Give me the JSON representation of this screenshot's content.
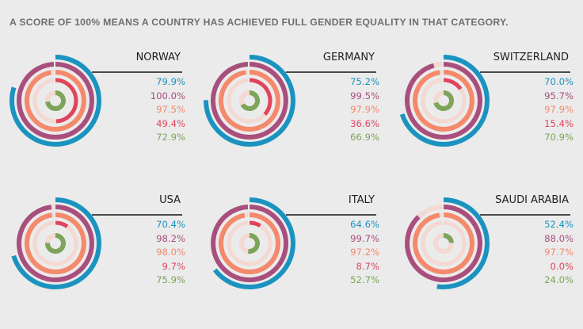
{
  "headline": "A SCORE OF 100% MEANS A COUNTRY HAS ACHIEVED FULL GENDER EQUALITY IN THAT CATEGORY.",
  "colors": {
    "ring_colors": [
      "#1b93c0",
      "#a84f7e",
      "#f4896c",
      "#e0445c",
      "#7da45a"
    ],
    "track_color": "#f4d8d2",
    "background": "#ebebeb"
  },
  "chart_data": {
    "type": "radial_bar",
    "series_count": 5,
    "panels": [
      {
        "country": "NORWAY",
        "values": [
          79.9,
          100.0,
          97.5,
          49.4,
          72.9
        ],
        "labels": [
          "79.9%",
          "100.0%",
          "97.5%",
          "49.4%",
          "72.9%"
        ]
      },
      {
        "country": "GERMANY",
        "values": [
          75.2,
          99.5,
          97.9,
          36.6,
          66.9
        ],
        "labels": [
          "75.2%",
          "99.5%",
          "97.9%",
          "36.6%",
          "66.9%"
        ]
      },
      {
        "country": "SWITZERLAND",
        "values": [
          70.0,
          95.7,
          97.9,
          15.4,
          70.9
        ],
        "labels": [
          "70.0%",
          "95.7%",
          "97.9%",
          "15.4%",
          "70.9%"
        ]
      },
      {
        "country": "USA",
        "values": [
          70.4,
          98.2,
          98.0,
          9.7,
          75.9
        ],
        "labels": [
          "70.4%",
          "98.2%",
          "98.0%",
          "9.7%",
          "75.9%"
        ]
      },
      {
        "country": "ITALY",
        "values": [
          64.6,
          99.7,
          97.2,
          8.7,
          52.7
        ],
        "labels": [
          "64.6%",
          "99.7%",
          "97.2%",
          "8.7%",
          "52.7%"
        ]
      },
      {
        "country": "SAUDI ARABIA",
        "values": [
          52.4,
          88.0,
          97.7,
          0.0,
          24.0
        ],
        "labels": [
          "52.4%",
          "88.0%",
          "97.7%",
          "0.0%",
          "24.0%"
        ]
      }
    ]
  }
}
